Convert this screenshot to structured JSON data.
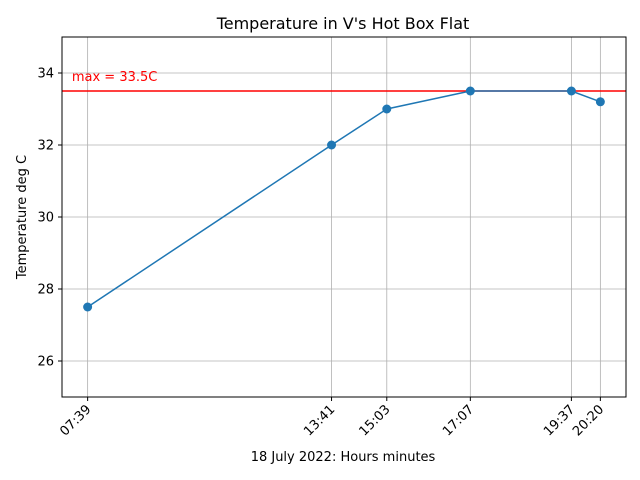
{
  "chart_data": {
    "type": "line",
    "title": "Temperature in V's Hot Box Flat",
    "xlabel": "18 July 2022: Hours minutes",
    "ylabel": "Temperature deg C",
    "x": [
      "07:39",
      "13:41",
      "15:03",
      "17:07",
      "19:37",
      "20:20"
    ],
    "values": [
      27.5,
      32.0,
      33.0,
      33.5,
      33.5,
      33.2
    ],
    "ylim": [
      25,
      35
    ],
    "yticks": [
      "26",
      "28",
      "30",
      "32",
      "34"
    ],
    "xtick_rotation": "45 degrees",
    "grid": true,
    "series_color": "#1f77b4",
    "annotation": {
      "label": "max = 33.5C",
      "value": 33.5,
      "color": "#ff0000"
    }
  }
}
